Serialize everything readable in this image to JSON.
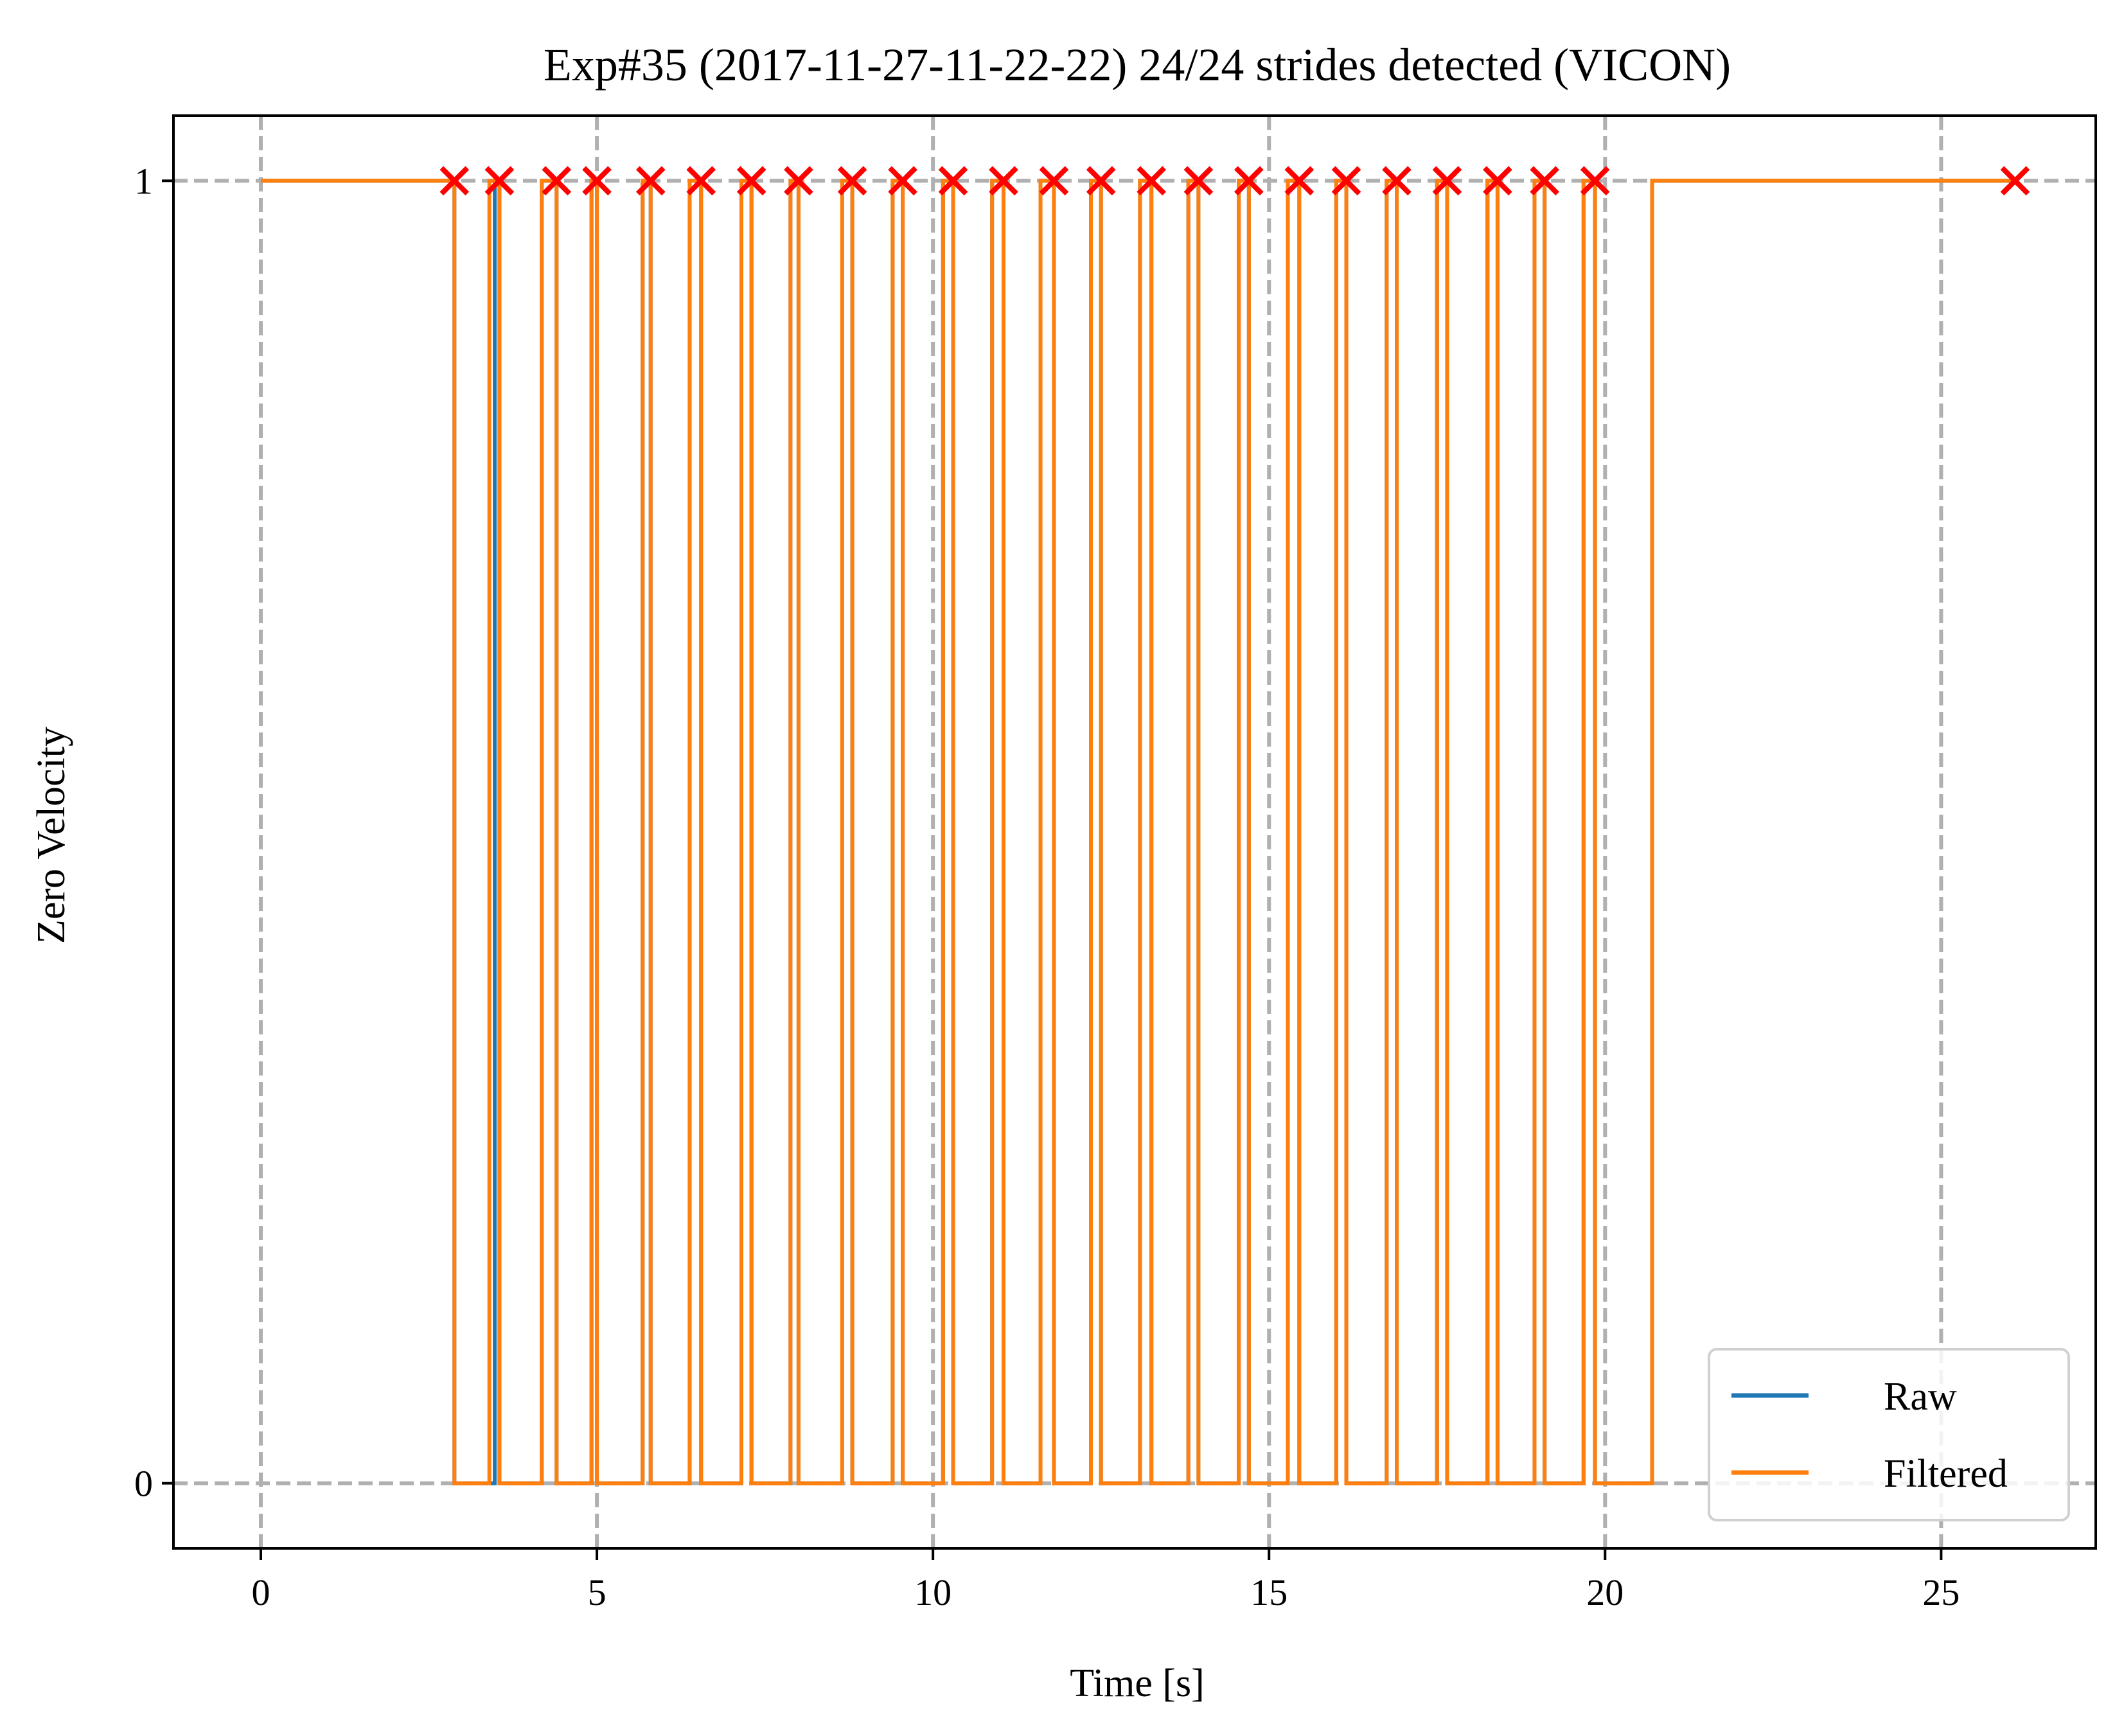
{
  "chart_data": {
    "type": "line",
    "title": "Exp#35 (2017-11-27-11-22-22) 24/24 strides detected (VICON)",
    "xlabel": "Time [s]",
    "ylabel": "Zero Velocity",
    "xlim": [
      -1.3,
      27.3
    ],
    "ylim": [
      -0.05,
      1.05
    ],
    "x_ticks": [
      0,
      5,
      10,
      15,
      20,
      25
    ],
    "x_tick_labels": [
      "0",
      "5",
      "10",
      "15",
      "20",
      "25"
    ],
    "y_ticks": [
      0,
      1
    ],
    "y_tick_labels": [
      "0",
      "1"
    ],
    "grid": true,
    "legend_position": "lower-right",
    "step_interpolation": "post",
    "series": [
      {
        "name": "Raw",
        "color": "#1f77b4",
        "x": [
          0,
          2.88,
          3.48,
          3.55,
          4.18,
          4.4,
          4.92,
          5.0,
          5.68,
          5.8,
          6.38,
          6.55,
          7.15,
          7.3,
          7.88,
          8.0,
          8.65,
          8.8,
          9.4,
          9.55,
          10.15,
          10.3,
          10.88,
          11.05,
          11.6,
          11.8,
          12.35,
          12.5,
          13.08,
          13.25,
          13.8,
          13.95,
          14.55,
          14.7,
          15.28,
          15.45,
          16.0,
          16.15,
          16.75,
          16.9,
          17.5,
          17.65,
          18.25,
          18.4,
          18.95,
          19.1,
          19.68,
          19.85,
          20.7,
          26.1
        ],
        "y": [
          1,
          0,
          1,
          0,
          1,
          0,
          1,
          0,
          1,
          0,
          1,
          0,
          1,
          0,
          1,
          0,
          1,
          0,
          1,
          0,
          1,
          0,
          1,
          0,
          1,
          0,
          1,
          0,
          1,
          0,
          1,
          0,
          1,
          0,
          1,
          0,
          1,
          0,
          1,
          0,
          1,
          0,
          1,
          0,
          1,
          0,
          1,
          0,
          1,
          1
        ]
      },
      {
        "name": "Filtered",
        "color": "#ff7f0e",
        "x": [
          0,
          2.88,
          3.4,
          3.55,
          4.18,
          4.4,
          4.92,
          5.0,
          5.68,
          5.8,
          6.38,
          6.55,
          7.15,
          7.3,
          7.88,
          8.0,
          8.65,
          8.8,
          9.4,
          9.55,
          10.15,
          10.3,
          10.88,
          11.05,
          11.6,
          11.8,
          12.35,
          12.5,
          13.08,
          13.25,
          13.8,
          13.95,
          14.55,
          14.7,
          15.28,
          15.45,
          16.0,
          16.15,
          16.75,
          16.9,
          17.5,
          17.65,
          18.25,
          18.4,
          18.95,
          19.1,
          19.68,
          19.85,
          20.7,
          26.1
        ],
        "y": [
          1,
          0,
          1,
          0,
          1,
          0,
          1,
          0,
          1,
          0,
          1,
          0,
          1,
          0,
          1,
          0,
          1,
          0,
          1,
          0,
          1,
          0,
          1,
          0,
          1,
          0,
          1,
          0,
          1,
          0,
          1,
          0,
          1,
          0,
          1,
          0,
          1,
          0,
          1,
          0,
          1,
          0,
          1,
          0,
          1,
          0,
          1,
          0,
          1,
          1
        ]
      }
    ],
    "markers": {
      "style": "x",
      "color": "#ff0000",
      "y": 1,
      "x": [
        2.88,
        3.55,
        4.4,
        5.0,
        5.8,
        6.55,
        7.3,
        8.0,
        8.8,
        9.55,
        10.3,
        11.05,
        11.8,
        12.5,
        13.25,
        13.95,
        14.7,
        15.45,
        16.15,
        16.9,
        17.65,
        18.4,
        19.1,
        19.85,
        26.1
      ]
    }
  }
}
